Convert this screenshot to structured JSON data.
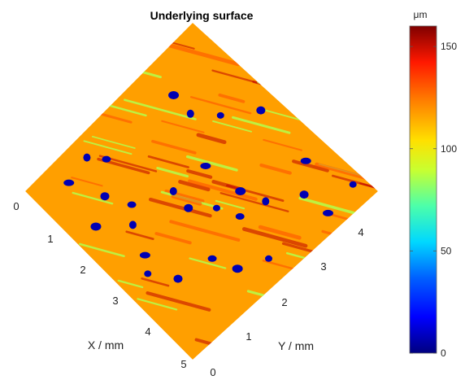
{
  "chart_data": {
    "type": "heatmap",
    "title": "Underlying surface",
    "xlabel": "X / mm",
    "ylabel": "Y / mm",
    "x_ticks": [
      "0",
      "1",
      "2",
      "3",
      "4",
      "5"
    ],
    "y_ticks": [
      "0",
      "1",
      "2",
      "3",
      "4"
    ],
    "xlim": [
      0,
      5
    ],
    "ylim": [
      0,
      5
    ],
    "view": "top-down 3D surface rotated 45 degrees",
    "colorbar": {
      "unit": "μm",
      "ticks": [
        "0",
        "50",
        "100",
        "150"
      ],
      "range": [
        0,
        160
      ],
      "colormap": "jet"
    },
    "surface": {
      "base_height_um": 115,
      "ridge_height_um": 88,
      "ridge_direction": "diagonal streaks",
      "pits": [
        {
          "x": 0.25,
          "y": 4.55,
          "depth_um": 0
        },
        {
          "x": 1.1,
          "y": 4.0,
          "depth_um": 0
        },
        {
          "x": 1.05,
          "y": 4.6,
          "depth_um": 0
        },
        {
          "x": 1.75,
          "y": 3.55,
          "depth_um": 0
        },
        {
          "x": 2.35,
          "y": 3.4,
          "depth_um": 0
        },
        {
          "x": 1.95,
          "y": 3.05,
          "depth_um": 0
        },
        {
          "x": 2.55,
          "y": 2.95,
          "depth_um": 0
        },
        {
          "x": 2.95,
          "y": 2.55,
          "depth_um": 0
        },
        {
          "x": 2.05,
          "y": 2.2,
          "depth_um": 0
        },
        {
          "x": 2.9,
          "y": 2.1,
          "depth_um": 0
        },
        {
          "x": 3.4,
          "y": 3.6,
          "depth_um": 0
        },
        {
          "x": 3.2,
          "y": 4.1,
          "depth_um": 0
        },
        {
          "x": 2.6,
          "y": 4.4,
          "depth_um": 0
        },
        {
          "x": 4.2,
          "y": 3.4,
          "depth_um": 0
        },
        {
          "x": 4.3,
          "y": 2.6,
          "depth_um": 0
        },
        {
          "x": 4.0,
          "y": 2.0,
          "depth_um": 0
        },
        {
          "x": 3.7,
          "y": 1.7,
          "depth_um": 0
        },
        {
          "x": 4.55,
          "y": 1.5,
          "depth_um": 0
        },
        {
          "x": 4.55,
          "y": 2.9,
          "depth_um": 0
        },
        {
          "x": 3.95,
          "y": 1.2,
          "depth_um": 0
        },
        {
          "x": 4.25,
          "y": 0.5,
          "depth_um": 0
        },
        {
          "x": 3.6,
          "y": 0.4,
          "depth_um": 0
        },
        {
          "x": 3.35,
          "y": 0.7,
          "depth_um": 0
        },
        {
          "x": 1.4,
          "y": 0.75,
          "depth_um": 0
        },
        {
          "x": 1.05,
          "y": 1.7,
          "depth_um": 0
        },
        {
          "x": 0.4,
          "y": 2.2,
          "depth_um": 0
        },
        {
          "x": 0.55,
          "y": 3.55,
          "depth_um": 0
        },
        {
          "x": 1.45,
          "y": 1.25,
          "depth_um": 0
        }
      ]
    }
  }
}
